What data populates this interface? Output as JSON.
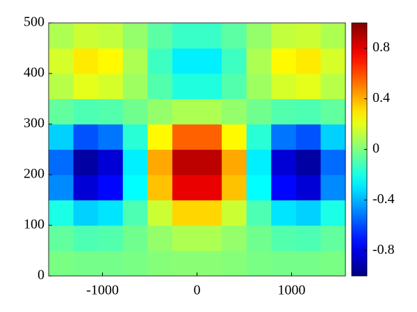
{
  "chart_data": {
    "type": "heatmap",
    "x": [
      -1439,
      -1177,
      -916,
      -654,
      -392,
      -131,
      131,
      392,
      654,
      916,
      1177,
      1439
    ],
    "y": [
      25,
      75,
      125,
      175,
      225,
      275,
      325,
      375,
      425,
      475
    ],
    "z": [
      [
        -0.01,
        -0.02,
        -0.02,
        -0.01,
        0.01,
        0.02,
        0.02,
        0.01,
        -0.01,
        -0.02,
        -0.02,
        -0.01
      ],
      [
        -0.06,
        -0.1,
        -0.09,
        -0.03,
        0.04,
        0.09,
        0.09,
        0.04,
        -0.03,
        -0.09,
        -0.1,
        -0.06
      ],
      [
        -0.2,
        -0.34,
        -0.3,
        -0.1,
        0.15,
        0.33,
        0.33,
        0.15,
        -0.1,
        -0.3,
        -0.34,
        -0.2
      ],
      [
        -0.48,
        -0.83,
        -0.74,
        -0.25,
        0.37,
        0.79,
        0.79,
        0.37,
        -0.25,
        -0.74,
        -0.83,
        -0.48
      ],
      [
        -0.54,
        -0.93,
        -0.83,
        -0.28,
        0.42,
        0.88,
        0.88,
        0.42,
        -0.28,
        -0.83,
        -0.93,
        -0.54
      ],
      [
        -0.34,
        -0.59,
        -0.52,
        -0.17,
        0.26,
        0.56,
        0.56,
        0.26,
        -0.17,
        -0.52,
        -0.59,
        -0.34
      ],
      [
        -0.06,
        -0.1,
        -0.09,
        -0.03,
        0.04,
        0.09,
        0.09,
        0.04,
        -0.03,
        -0.09,
        -0.1,
        -0.06
      ],
      [
        0.11,
        0.2,
        0.17,
        0.06,
        -0.09,
        -0.19,
        -0.19,
        -0.09,
        0.06,
        0.17,
        0.2,
        0.11
      ],
      [
        0.17,
        0.29,
        0.26,
        0.09,
        -0.13,
        -0.28,
        -0.28,
        -0.13,
        0.09,
        0.26,
        0.29,
        0.17
      ],
      [
        0.09,
        0.15,
        0.13,
        0.04,
        -0.07,
        -0.14,
        -0.14,
        -0.07,
        0.04,
        0.13,
        0.15,
        0.09
      ]
    ],
    "xlim": [
      -1570,
      1570
    ],
    "ylim": [
      0,
      500
    ],
    "xticks": [
      -1000,
      0,
      1000
    ],
    "yticks": [
      0,
      100,
      200,
      300,
      400,
      500
    ],
    "colormap": "jet",
    "clim": [
      -1,
      1
    ],
    "cticks": [
      -0.8,
      -0.4,
      0,
      0.4,
      0.8
    ]
  }
}
